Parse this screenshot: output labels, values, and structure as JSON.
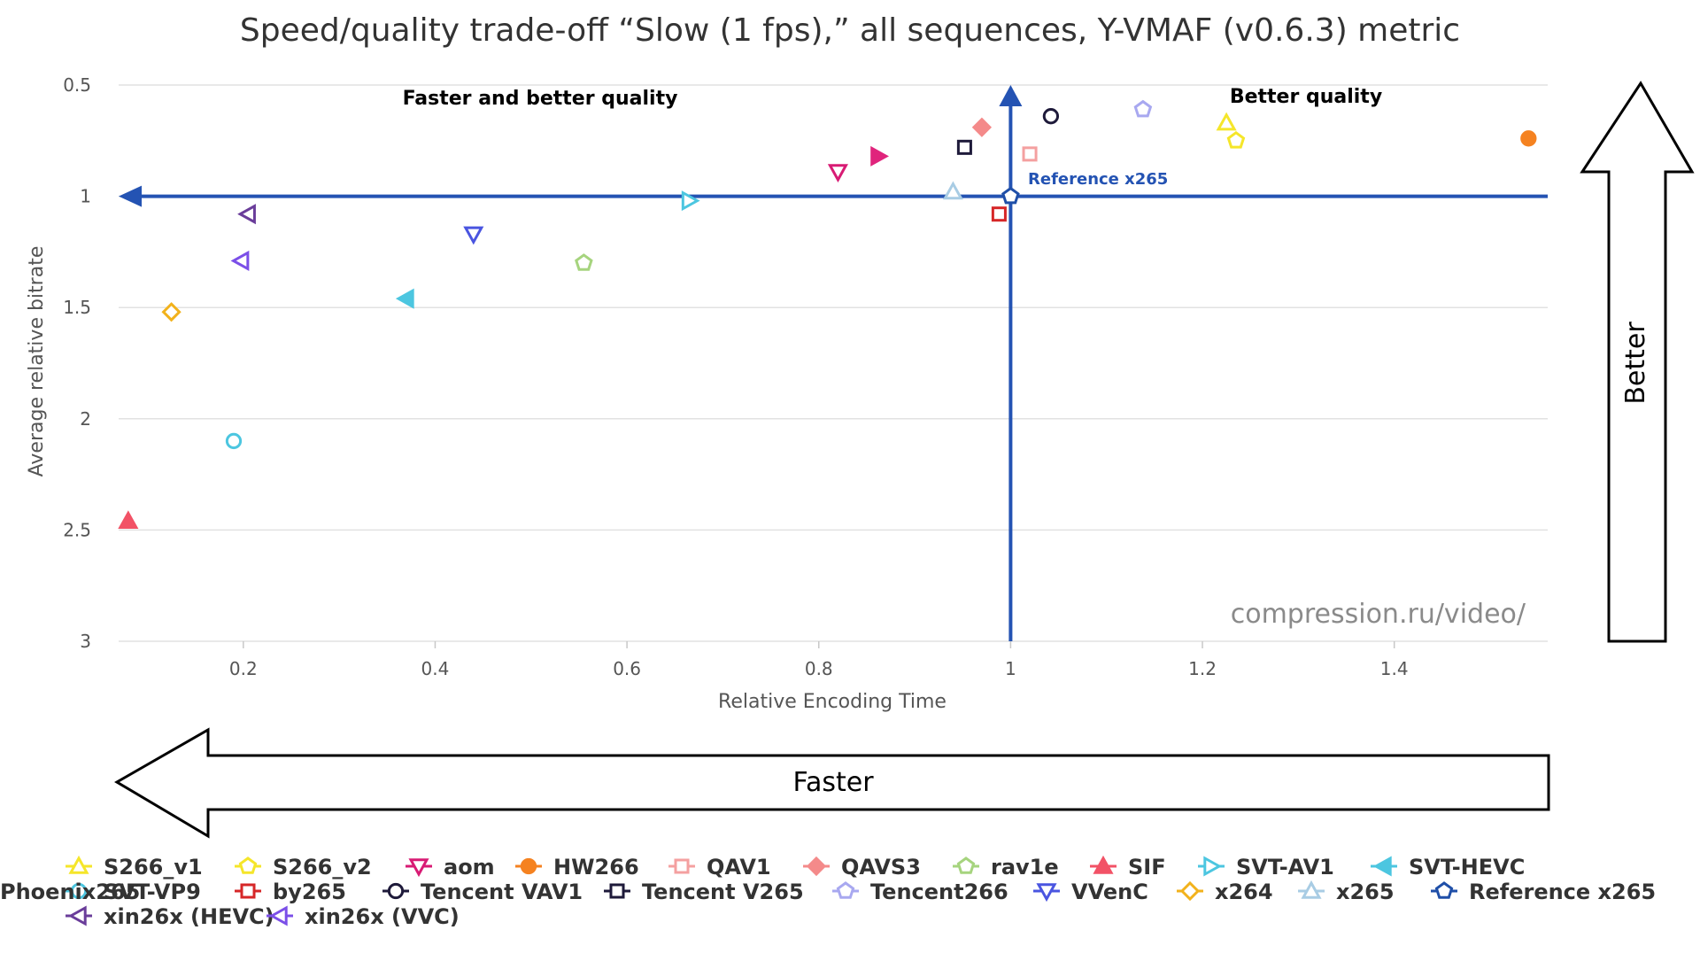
{
  "chart_data": {
    "type": "scatter",
    "title": "Speed/quality trade-off “Slow (1 fps),” all sequences, Y-VMAF (v0.6.3) metric",
    "xlabel": "Relative Encoding Time",
    "ylabel": "Average relative bitrate",
    "xlim": [
      0.07,
      1.56
    ],
    "ylim": [
      0.5,
      3
    ],
    "y_reversed": true,
    "grid": "horizontal",
    "legend_position": "bottom",
    "xticks": [
      "0.2",
      "0.4",
      "0.6",
      "0.8",
      "1",
      "1.2",
      "1.4"
    ],
    "yticks": [
      "0.5",
      "1",
      "1.5",
      "2",
      "2.5",
      "3"
    ],
    "reference": {
      "x": 1.0,
      "y": 1.0,
      "label": "Reference x265",
      "color": "#2453b3"
    },
    "quadrant_labels": {
      "top_left": "Faster and better quality",
      "top_right": "Better quality"
    },
    "series": [
      {
        "name": "S266_v1",
        "x": 1.225,
        "y": 0.67,
        "color": "#f5e62a",
        "shape": "triangle-up",
        "filled": false
      },
      {
        "name": "S266_v2",
        "x": 1.235,
        "y": 0.75,
        "color": "#f5e62a",
        "shape": "pentagon",
        "filled": false
      },
      {
        "name": "aom",
        "x": 0.82,
        "y": 0.89,
        "color": "#d81b74",
        "shape": "triangle-down",
        "filled": false
      },
      {
        "name": "HW266",
        "x": 1.54,
        "y": 0.74,
        "color": "#f58220",
        "shape": "circle",
        "filled": true
      },
      {
        "name": "QAV1",
        "x": 1.02,
        "y": 0.81,
        "color": "#f4a0a0",
        "shape": "square",
        "filled": false
      },
      {
        "name": "QAVS3",
        "x": 0.97,
        "y": 0.69,
        "color": "#f48a8a",
        "shape": "diamond",
        "filled": true
      },
      {
        "name": "rav1e",
        "x": 0.555,
        "y": 1.3,
        "color": "#a6d47e",
        "shape": "pentagon",
        "filled": false
      },
      {
        "name": "SIF",
        "x": 0.08,
        "y": 2.46,
        "color": "#f25266",
        "shape": "triangle-up",
        "filled": true
      },
      {
        "name": "SVT-AV1",
        "x": 0.665,
        "y": 1.02,
        "color": "#4cc6e0",
        "shape": "triangle-right",
        "filled": false
      },
      {
        "name": "SVT-HEVC",
        "x": 0.37,
        "y": 1.46,
        "color": "#4cc6e0",
        "shape": "triangle-left",
        "filled": true
      },
      {
        "name": "SVT-VP9",
        "x": 0.19,
        "y": 2.1,
        "color": "#4cc6e0",
        "shape": "circle",
        "filled": false
      },
      {
        "name": "by265",
        "x": 0.988,
        "y": 1.08,
        "color": "#d62728",
        "shape": "square",
        "filled": false
      },
      {
        "name": "Tencent VAV1",
        "x": 1.042,
        "y": 0.64,
        "color": "#1e1a3a",
        "shape": "circle",
        "filled": false
      },
      {
        "name": "Tencent V265",
        "x": 0.952,
        "y": 0.78,
        "color": "#1e1a3a",
        "shape": "square",
        "filled": false
      },
      {
        "name": "Tencent266",
        "x": 1.138,
        "y": 0.61,
        "color": "#a8a8f0",
        "shape": "pentagon",
        "filled": false
      },
      {
        "name": "VVenC",
        "x": 0.44,
        "y": 1.17,
        "color": "#4a55e0",
        "shape": "triangle-down",
        "filled": false
      },
      {
        "name": "x264",
        "x": 0.125,
        "y": 1.52,
        "color": "#f2b21c",
        "shape": "diamond",
        "filled": false
      },
      {
        "name": "x265",
        "x": 0.94,
        "y": 0.98,
        "color": "#a8cce4",
        "shape": "triangle-up",
        "filled": false
      },
      {
        "name": "Reference x265",
        "x": 1.0,
        "y": 1.0,
        "color": "#1f4fa8",
        "shape": "pentagon",
        "filled": false
      },
      {
        "name": "Phoenix265",
        "x": 0.862,
        "y": 0.82,
        "color": "#e0247c",
        "shape": "triangle-right",
        "filled": true
      },
      {
        "name": "xin26x (HEVC)",
        "x": 0.205,
        "y": 1.08,
        "color": "#6a3d9a",
        "shape": "triangle-left",
        "filled": false
      },
      {
        "name": "xin26x (VVC)",
        "x": 0.198,
        "y": 1.29,
        "color": "#7b4fe8",
        "shape": "triangle-left",
        "filled": false
      }
    ]
  },
  "annotations": {
    "watermark": "compression.ru/video/",
    "arrow_up_label": "Better",
    "arrow_left_label": "Faster"
  }
}
